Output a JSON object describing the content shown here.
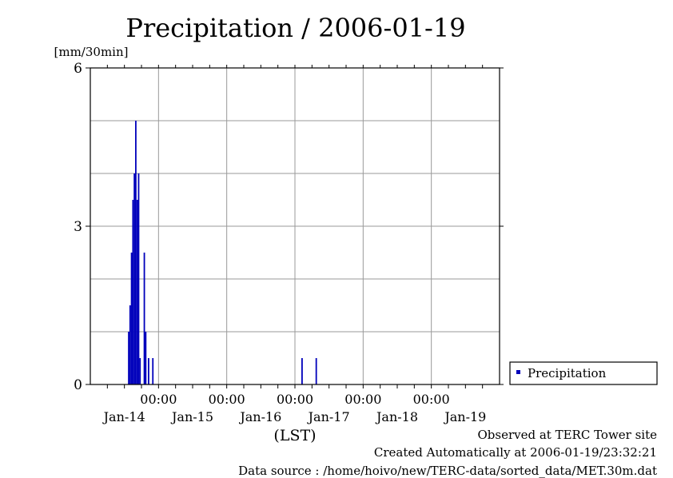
{
  "chart_data": {
    "type": "bar",
    "title": "Precipitation / 2006-01-19",
    "ylabel": "[mm/30min]",
    "xlabel": "(LST)",
    "ylim": [
      0,
      6
    ],
    "yticks": [
      "0",
      "3",
      "6"
    ],
    "xlim_hours": [
      0,
      144
    ],
    "xtick_time_labels": [
      "00:00",
      "00:00",
      "00:00",
      "00:00",
      "00:00"
    ],
    "xtick_date_labels": [
      "Jan-14",
      "Jan-15",
      "Jan-16",
      "Jan-17",
      "Jan-18",
      "Jan-19"
    ],
    "grid": true,
    "legend_position": "right",
    "series": [
      {
        "name": "Precipitation",
        "color": "#0000bb",
        "points": [
          {
            "x": "2006-01-14 13:30",
            "y": 1.0
          },
          {
            "x": "2006-01-14 14:00",
            "y": 1.5
          },
          {
            "x": "2006-01-14 14:30",
            "y": 2.5
          },
          {
            "x": "2006-01-14 15:00",
            "y": 3.5
          },
          {
            "x": "2006-01-14 15:30",
            "y": 4.0
          },
          {
            "x": "2006-01-14 16:00",
            "y": 5.0
          },
          {
            "x": "2006-01-14 16:30",
            "y": 3.5
          },
          {
            "x": "2006-01-14 17:00",
            "y": 4.0
          },
          {
            "x": "2006-01-14 17:30",
            "y": 0.5
          },
          {
            "x": "2006-01-14 19:00",
            "y": 2.5
          },
          {
            "x": "2006-01-14 19:30",
            "y": 1.0
          },
          {
            "x": "2006-01-14 20:30",
            "y": 0.5
          },
          {
            "x": "2006-01-14 22:00",
            "y": 0.5
          },
          {
            "x": "2006-01-17 02:30",
            "y": 0.5
          },
          {
            "x": "2006-01-17 07:30",
            "y": 0.5
          }
        ]
      }
    ]
  },
  "footer": {
    "observed": "Observed at TERC Tower site",
    "created": "Created Automatically at 2006-01-19/23:32:21",
    "source": "Data source : /home/hoivo/new/TERC-data/sorted_data/MET.30m.dat"
  }
}
